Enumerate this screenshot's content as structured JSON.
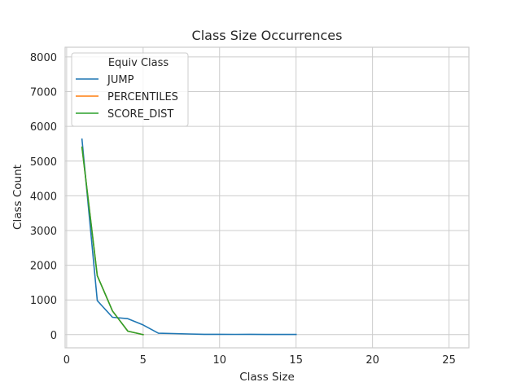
{
  "chart_data": {
    "type": "line",
    "title": "Class Size Occurrences",
    "xlabel": "Class Size",
    "ylabel": "Class Count",
    "xlim": [
      -0.1,
      26.3
    ],
    "ylim": [
      -380,
      8280
    ],
    "xticks": [
      0,
      5,
      10,
      15,
      20,
      25
    ],
    "yticks": [
      0,
      1000,
      2000,
      3000,
      4000,
      5000,
      6000,
      7000,
      8000
    ],
    "grid": true,
    "legend": {
      "title": "Equiv Class",
      "placement": "top-left"
    },
    "series": [
      {
        "name": "JUMP",
        "color": "#1f77b4",
        "x": [
          1,
          2,
          3,
          4,
          5,
          6,
          7,
          8,
          9,
          10,
          11,
          12,
          13,
          14,
          15
        ],
        "y": [
          5630,
          980,
          500,
          460,
          280,
          40,
          30,
          20,
          10,
          10,
          8,
          10,
          6,
          5,
          5
        ]
      },
      {
        "name": "PERCENTILES",
        "color": "#ff7f0e",
        "x": [
          1,
          2,
          3,
          4,
          5
        ],
        "y": [
          5400,
          1700,
          680,
          100,
          0
        ]
      },
      {
        "name": "SCORE_DIST",
        "color": "#2ca02c",
        "x": [
          1,
          2,
          3,
          4,
          5
        ],
        "y": [
          5400,
          1700,
          680,
          100,
          0
        ]
      }
    ]
  }
}
